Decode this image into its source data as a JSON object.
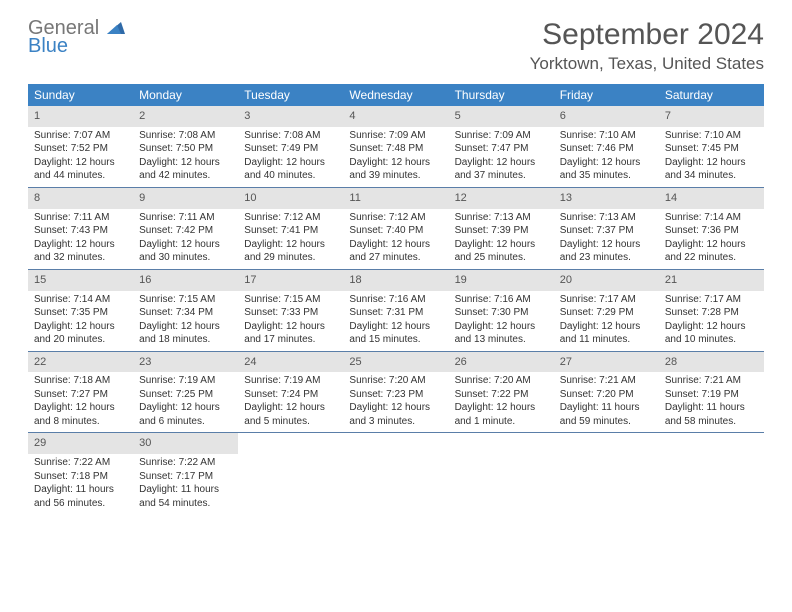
{
  "logo": {
    "text_general": "General",
    "text_blue": "Blue"
  },
  "title": "September 2024",
  "location": "Yorktown, Texas, United States",
  "colors": {
    "header_bg": "#3b82c4",
    "daynum_bg": "#e4e4e4",
    "week_border": "#5a7ea8",
    "text": "#333333",
    "title_text": "#555555"
  },
  "day_names": [
    "Sunday",
    "Monday",
    "Tuesday",
    "Wednesday",
    "Thursday",
    "Friday",
    "Saturday"
  ],
  "weeks": [
    [
      {
        "n": "1",
        "sr": "Sunrise: 7:07 AM",
        "ss": "Sunset: 7:52 PM",
        "dl": "Daylight: 12 hours and 44 minutes."
      },
      {
        "n": "2",
        "sr": "Sunrise: 7:08 AM",
        "ss": "Sunset: 7:50 PM",
        "dl": "Daylight: 12 hours and 42 minutes."
      },
      {
        "n": "3",
        "sr": "Sunrise: 7:08 AM",
        "ss": "Sunset: 7:49 PM",
        "dl": "Daylight: 12 hours and 40 minutes."
      },
      {
        "n": "4",
        "sr": "Sunrise: 7:09 AM",
        "ss": "Sunset: 7:48 PM",
        "dl": "Daylight: 12 hours and 39 minutes."
      },
      {
        "n": "5",
        "sr": "Sunrise: 7:09 AM",
        "ss": "Sunset: 7:47 PM",
        "dl": "Daylight: 12 hours and 37 minutes."
      },
      {
        "n": "6",
        "sr": "Sunrise: 7:10 AM",
        "ss": "Sunset: 7:46 PM",
        "dl": "Daylight: 12 hours and 35 minutes."
      },
      {
        "n": "7",
        "sr": "Sunrise: 7:10 AM",
        "ss": "Sunset: 7:45 PM",
        "dl": "Daylight: 12 hours and 34 minutes."
      }
    ],
    [
      {
        "n": "8",
        "sr": "Sunrise: 7:11 AM",
        "ss": "Sunset: 7:43 PM",
        "dl": "Daylight: 12 hours and 32 minutes."
      },
      {
        "n": "9",
        "sr": "Sunrise: 7:11 AM",
        "ss": "Sunset: 7:42 PM",
        "dl": "Daylight: 12 hours and 30 minutes."
      },
      {
        "n": "10",
        "sr": "Sunrise: 7:12 AM",
        "ss": "Sunset: 7:41 PM",
        "dl": "Daylight: 12 hours and 29 minutes."
      },
      {
        "n": "11",
        "sr": "Sunrise: 7:12 AM",
        "ss": "Sunset: 7:40 PM",
        "dl": "Daylight: 12 hours and 27 minutes."
      },
      {
        "n": "12",
        "sr": "Sunrise: 7:13 AM",
        "ss": "Sunset: 7:39 PM",
        "dl": "Daylight: 12 hours and 25 minutes."
      },
      {
        "n": "13",
        "sr": "Sunrise: 7:13 AM",
        "ss": "Sunset: 7:37 PM",
        "dl": "Daylight: 12 hours and 23 minutes."
      },
      {
        "n": "14",
        "sr": "Sunrise: 7:14 AM",
        "ss": "Sunset: 7:36 PM",
        "dl": "Daylight: 12 hours and 22 minutes."
      }
    ],
    [
      {
        "n": "15",
        "sr": "Sunrise: 7:14 AM",
        "ss": "Sunset: 7:35 PM",
        "dl": "Daylight: 12 hours and 20 minutes."
      },
      {
        "n": "16",
        "sr": "Sunrise: 7:15 AM",
        "ss": "Sunset: 7:34 PM",
        "dl": "Daylight: 12 hours and 18 minutes."
      },
      {
        "n": "17",
        "sr": "Sunrise: 7:15 AM",
        "ss": "Sunset: 7:33 PM",
        "dl": "Daylight: 12 hours and 17 minutes."
      },
      {
        "n": "18",
        "sr": "Sunrise: 7:16 AM",
        "ss": "Sunset: 7:31 PM",
        "dl": "Daylight: 12 hours and 15 minutes."
      },
      {
        "n": "19",
        "sr": "Sunrise: 7:16 AM",
        "ss": "Sunset: 7:30 PM",
        "dl": "Daylight: 12 hours and 13 minutes."
      },
      {
        "n": "20",
        "sr": "Sunrise: 7:17 AM",
        "ss": "Sunset: 7:29 PM",
        "dl": "Daylight: 12 hours and 11 minutes."
      },
      {
        "n": "21",
        "sr": "Sunrise: 7:17 AM",
        "ss": "Sunset: 7:28 PM",
        "dl": "Daylight: 12 hours and 10 minutes."
      }
    ],
    [
      {
        "n": "22",
        "sr": "Sunrise: 7:18 AM",
        "ss": "Sunset: 7:27 PM",
        "dl": "Daylight: 12 hours and 8 minutes."
      },
      {
        "n": "23",
        "sr": "Sunrise: 7:19 AM",
        "ss": "Sunset: 7:25 PM",
        "dl": "Daylight: 12 hours and 6 minutes."
      },
      {
        "n": "24",
        "sr": "Sunrise: 7:19 AM",
        "ss": "Sunset: 7:24 PM",
        "dl": "Daylight: 12 hours and 5 minutes."
      },
      {
        "n": "25",
        "sr": "Sunrise: 7:20 AM",
        "ss": "Sunset: 7:23 PM",
        "dl": "Daylight: 12 hours and 3 minutes."
      },
      {
        "n": "26",
        "sr": "Sunrise: 7:20 AM",
        "ss": "Sunset: 7:22 PM",
        "dl": "Daylight: 12 hours and 1 minute."
      },
      {
        "n": "27",
        "sr": "Sunrise: 7:21 AM",
        "ss": "Sunset: 7:20 PM",
        "dl": "Daylight: 11 hours and 59 minutes."
      },
      {
        "n": "28",
        "sr": "Sunrise: 7:21 AM",
        "ss": "Sunset: 7:19 PM",
        "dl": "Daylight: 11 hours and 58 minutes."
      }
    ],
    [
      {
        "n": "29",
        "sr": "Sunrise: 7:22 AM",
        "ss": "Sunset: 7:18 PM",
        "dl": "Daylight: 11 hours and 56 minutes."
      },
      {
        "n": "30",
        "sr": "Sunrise: 7:22 AM",
        "ss": "Sunset: 7:17 PM",
        "dl": "Daylight: 11 hours and 54 minutes."
      },
      null,
      null,
      null,
      null,
      null
    ]
  ]
}
